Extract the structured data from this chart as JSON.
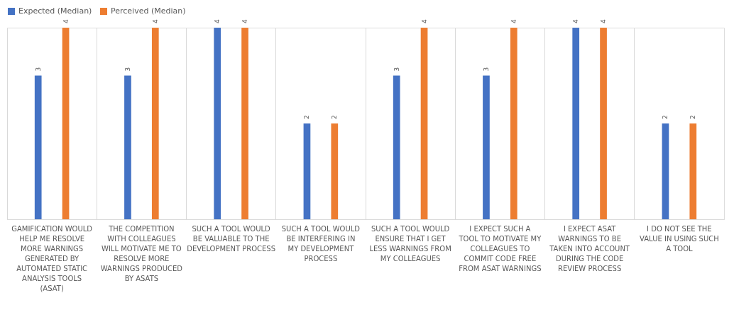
{
  "chart_data": {
    "type": "bar",
    "categories": [
      "GAMIFICATION WOULD HELP ME RESOLVE MORE WARNINGS GENERATED BY AUTOMATED STATIC ANALYSIS TOOLS (ASAT)",
      "THE COMPETITION WITH COLLEAGUES WILL MOTIVATE ME TO RESOLVE MORE WARNINGS PRODUCED BY ASATS",
      "SUCH A TOOL WOULD BE VALUABLE TO THE DEVELOPMENT PROCESS",
      "SUCH A TOOL WOULD BE INTERFERING IN MY DEVELOPMENT PROCESS",
      "SUCH A TOOL WOULD ENSURE THAT I GET LESS WARNINGS FROM MY COLLEAGUES",
      "I EXPECT SUCH A TOOL TO MOTIVATE MY COLLEAGUES TO COMMIT CODE FREE FROM ASAT WARNINGS",
      "I EXPECT ASAT WARNINGS TO BE TAKEN INTO ACCOUNT DURING THE CODE REVIEW PROCESS",
      "I DO NOT SEE THE VALUE IN USING SUCH A TOOL"
    ],
    "series": [
      {
        "name": "Expected (Median)",
        "color": "#4472c4",
        "values": [
          3,
          3,
          4,
          2,
          3,
          3,
          4,
          2
        ]
      },
      {
        "name": "Perceived (Median)",
        "color": "#ed7d31",
        "values": [
          4,
          4,
          4,
          2,
          4,
          4,
          4,
          2
        ]
      }
    ],
    "data_labels": true,
    "grid": "x",
    "legend": "top",
    "tick_labels": "x"
  }
}
